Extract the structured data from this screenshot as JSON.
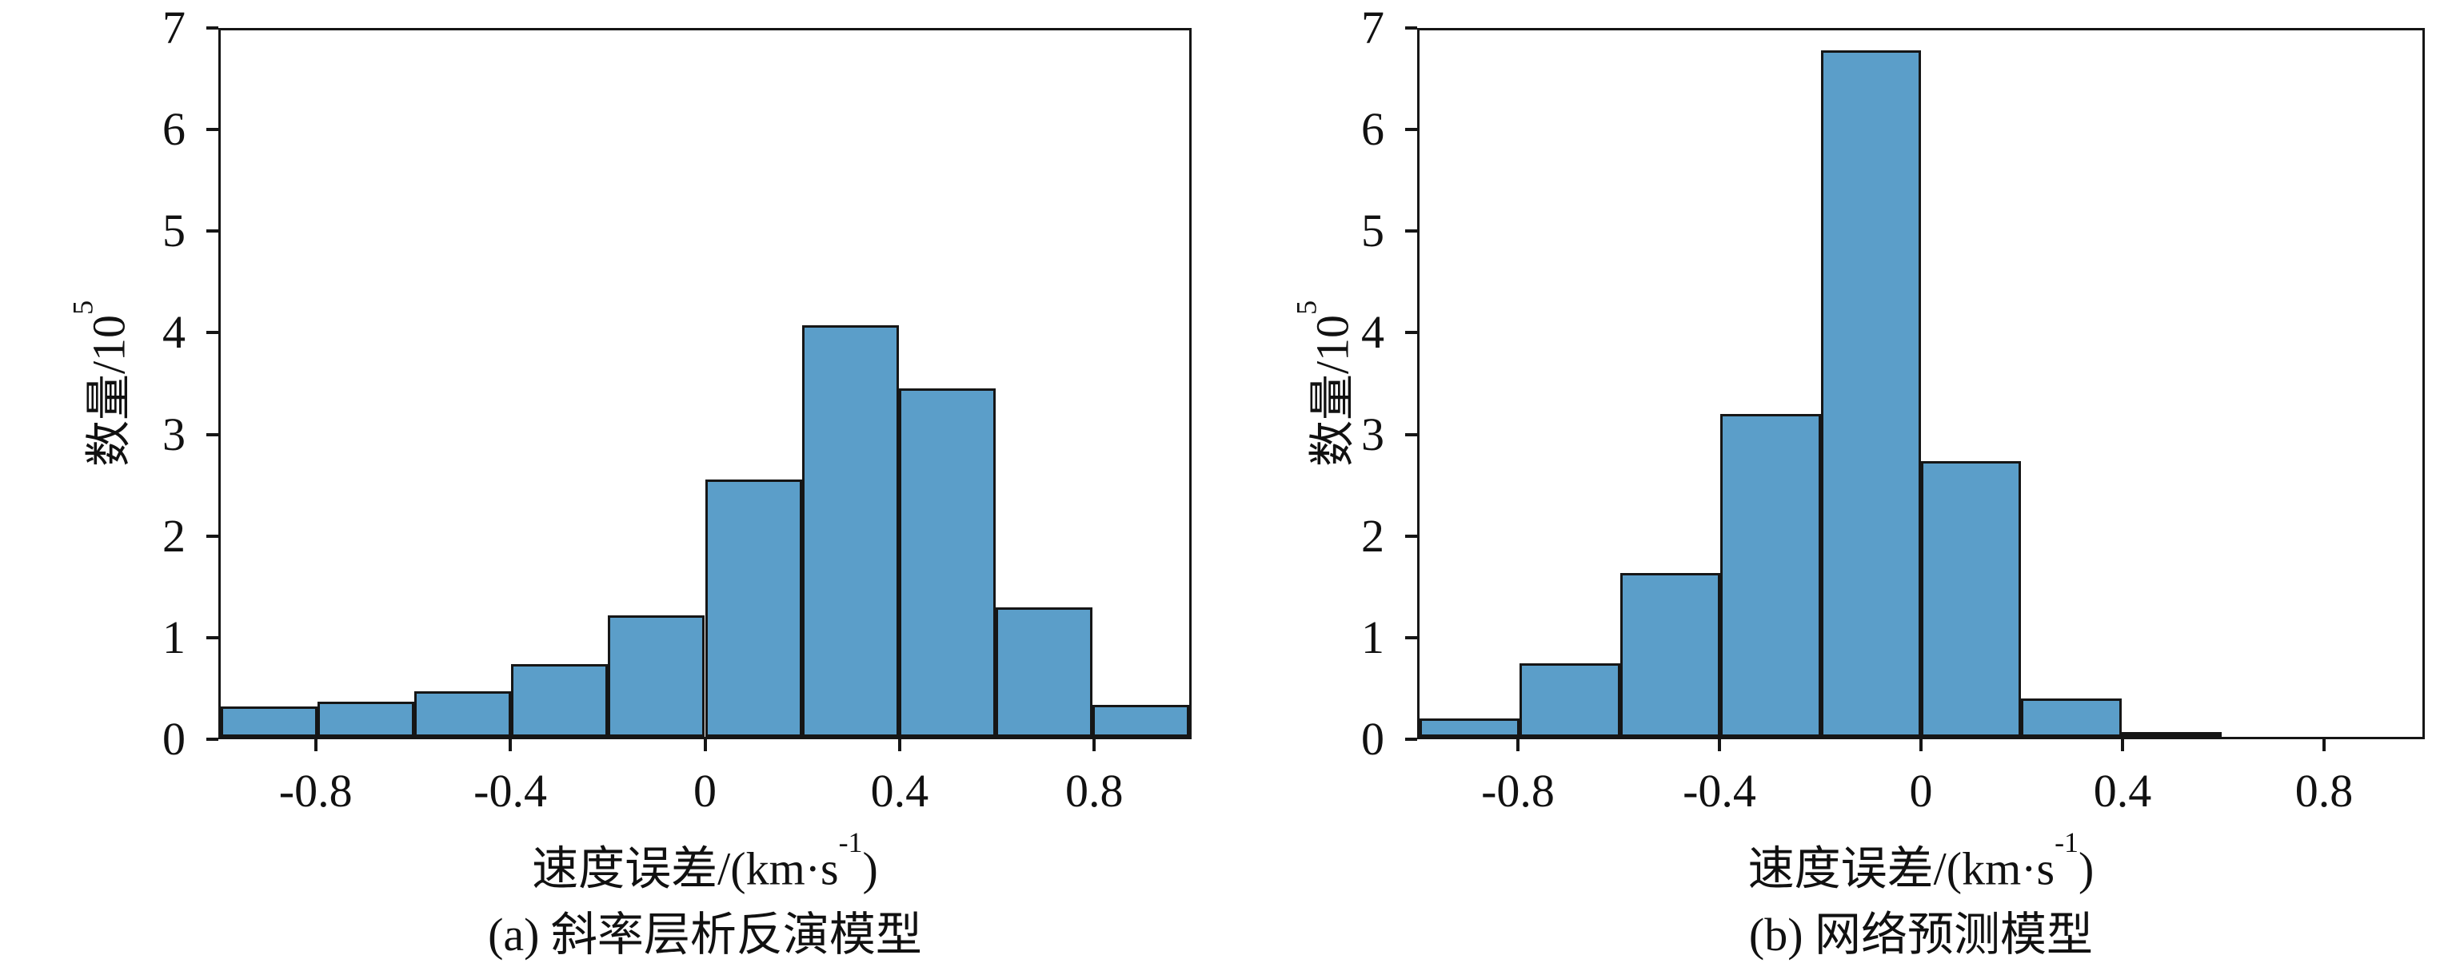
{
  "labels": {
    "ylabel_pre": "数量/10",
    "ylabel_sup": "5",
    "xlabel_pre": "速度误差/(km·s",
    "xlabel_sup": "-1",
    "xlabel_post": ")"
  },
  "chart_data": [
    {
      "type": "bar",
      "title": "(a) 斜率层析反演模型",
      "xlabel": "速度误差/(km·s⁻¹)",
      "ylabel": "数量/10⁵",
      "bin_edges": [
        -1.0,
        -0.8,
        -0.6,
        -0.4,
        -0.2,
        0.0,
        0.2,
        0.4,
        0.6,
        0.8,
        1.0
      ],
      "values": [
        0.3,
        0.35,
        0.45,
        0.72,
        1.2,
        2.55,
        4.08,
        3.45,
        1.28,
        0.32
      ],
      "xticks": [
        -0.8,
        -0.4,
        0,
        0.4,
        0.8
      ],
      "yticks": [
        0,
        1,
        2,
        3,
        4,
        5,
        6,
        7
      ],
      "xlim": [
        -1,
        1
      ],
      "ylim": [
        0,
        7
      ],
      "grid": false,
      "legend": "none",
      "bar_color": "#5B9EC9",
      "bar_edge_color": "#161616"
    },
    {
      "type": "bar",
      "title": "(b) 网络预测模型",
      "xlabel": "速度误差/(km·s⁻¹)",
      "ylabel": "数量/10⁵",
      "bin_edges": [
        -1.0,
        -0.8,
        -0.6,
        -0.4,
        -0.2,
        0.0,
        0.2,
        0.4,
        0.6,
        0.8,
        1.0
      ],
      "values": [
        0.18,
        0.73,
        1.62,
        3.2,
        6.8,
        2.73,
        0.38,
        0.02,
        0,
        0
      ],
      "xticks": [
        -0.8,
        -0.4,
        0,
        0.4,
        0.8
      ],
      "yticks": [
        0,
        1,
        2,
        3,
        4,
        5,
        6,
        7
      ],
      "xlim": [
        -1,
        1
      ],
      "ylim": [
        0,
        7
      ],
      "grid": false,
      "legend": "none",
      "bar_color": "#5B9EC9",
      "bar_edge_color": "#161616"
    }
  ]
}
